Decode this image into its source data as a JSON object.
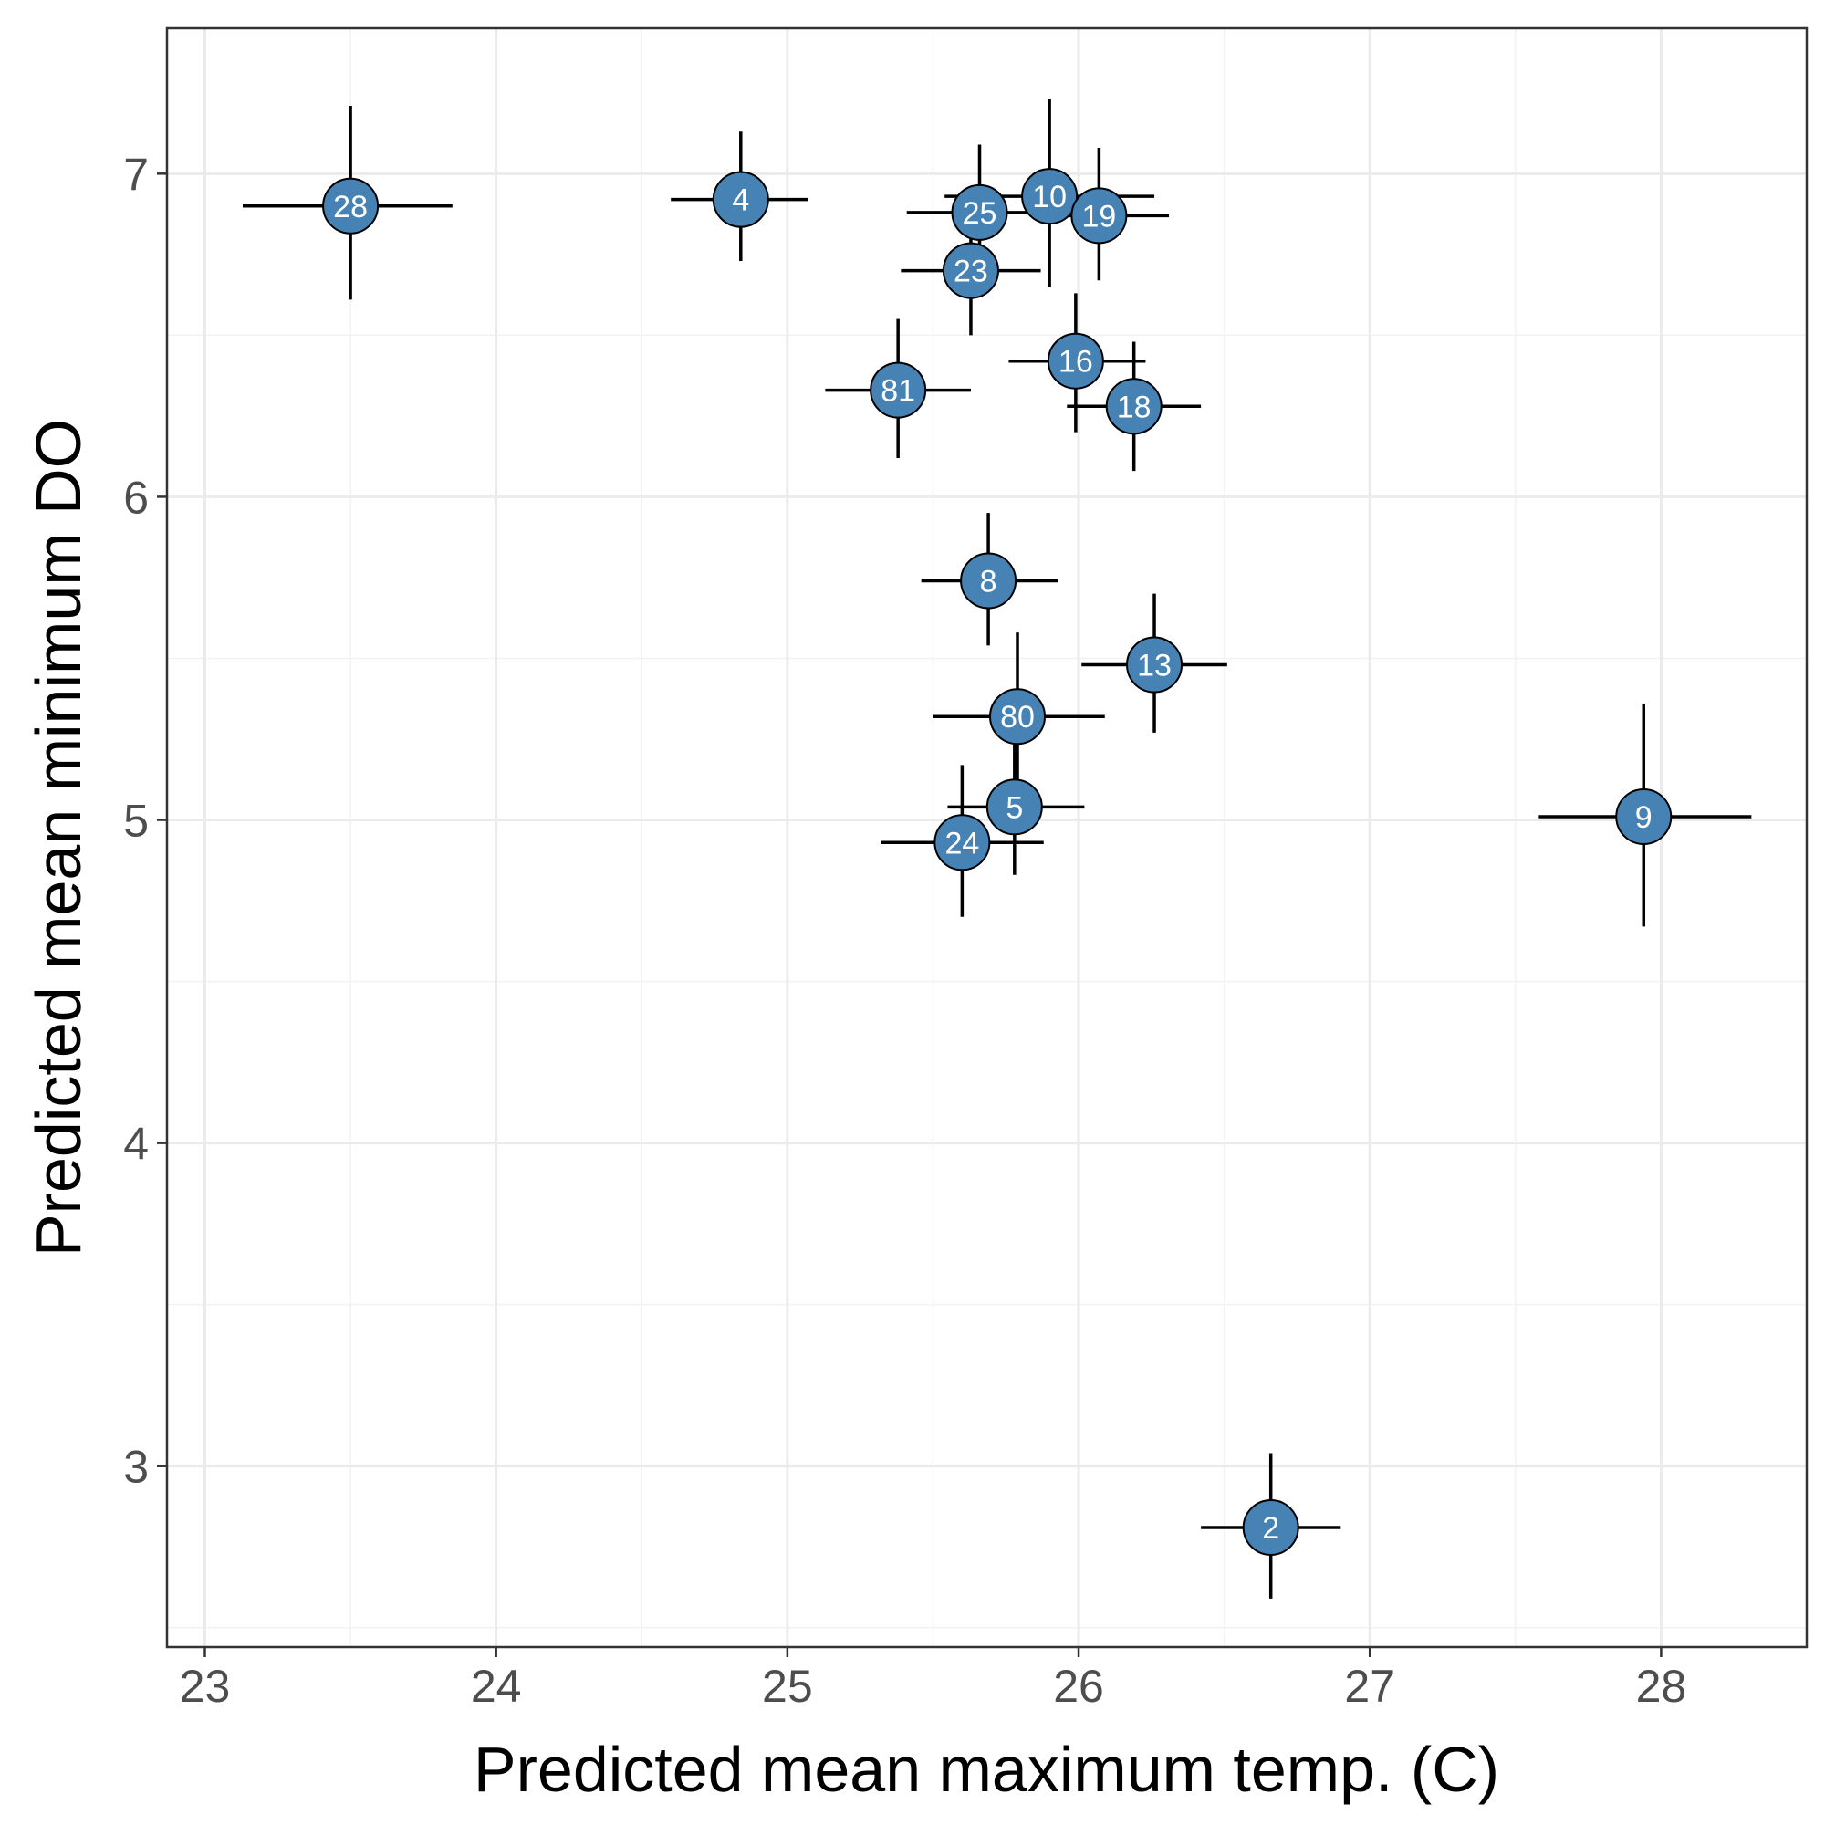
{
  "chart_data": {
    "type": "scatter",
    "xlabel": "Predicted mean maximum temp. (C)",
    "ylabel": "Predicted mean minimum DO",
    "xlim": [
      22.87,
      28.5
    ],
    "ylim": [
      2.44,
      7.45
    ],
    "x_ticks": [
      23,
      24,
      25,
      26,
      27,
      28
    ],
    "y_ticks": [
      3,
      4,
      5,
      6,
      7
    ],
    "grid": true,
    "legend": "none",
    "point_color": "#4682b4",
    "points": [
      {
        "label": "28",
        "x": 23.5,
        "y": 6.9,
        "x_err": [
          23.13,
          23.85
        ],
        "y_err": [
          6.61,
          7.21
        ]
      },
      {
        "label": "4",
        "x": 24.84,
        "y": 6.92,
        "x_err": [
          24.6,
          25.07
        ],
        "y_err": [
          6.73,
          7.13
        ]
      },
      {
        "label": "25",
        "x": 25.66,
        "y": 6.88,
        "x_err": [
          25.41,
          25.9
        ],
        "y_err": [
          6.7,
          7.09
        ]
      },
      {
        "label": "10",
        "x": 25.9,
        "y": 6.93,
        "x_err": [
          25.54,
          26.26
        ],
        "y_err": [
          6.65,
          7.23
        ]
      },
      {
        "label": "19",
        "x": 26.07,
        "y": 6.87,
        "x_err": [
          25.84,
          26.31
        ],
        "y_err": [
          6.67,
          7.08
        ]
      },
      {
        "label": "23",
        "x": 25.63,
        "y": 6.7,
        "x_err": [
          25.39,
          25.87
        ],
        "y_err": [
          6.5,
          6.9
        ]
      },
      {
        "label": "16",
        "x": 25.99,
        "y": 6.42,
        "x_err": [
          25.76,
          26.23
        ],
        "y_err": [
          6.2,
          6.63
        ]
      },
      {
        "label": "18",
        "x": 26.19,
        "y": 6.28,
        "x_err": [
          25.96,
          26.42
        ],
        "y_err": [
          6.08,
          6.48
        ]
      },
      {
        "label": "81",
        "x": 25.38,
        "y": 6.33,
        "x_err": [
          25.13,
          25.63
        ],
        "y_err": [
          6.12,
          6.55
        ]
      },
      {
        "label": "8",
        "x": 25.69,
        "y": 5.74,
        "x_err": [
          25.46,
          25.93
        ],
        "y_err": [
          5.54,
          5.95
        ]
      },
      {
        "label": "13",
        "x": 26.26,
        "y": 5.48,
        "x_err": [
          26.01,
          26.51
        ],
        "y_err": [
          5.27,
          5.7
        ]
      },
      {
        "label": "80",
        "x": 25.79,
        "y": 5.32,
        "x_err": [
          25.5,
          26.09
        ],
        "y_err": [
          5.06,
          5.58
        ]
      },
      {
        "label": "5",
        "x": 25.78,
        "y": 5.04,
        "x_err": [
          25.55,
          26.02
        ],
        "y_err": [
          4.83,
          5.25
        ]
      },
      {
        "label": "24",
        "x": 25.6,
        "y": 4.93,
        "x_err": [
          25.32,
          25.88
        ],
        "y_err": [
          4.7,
          5.17
        ]
      },
      {
        "label": "9",
        "x": 27.94,
        "y": 5.01,
        "x_err": [
          27.58,
          28.31
        ],
        "y_err": [
          4.67,
          5.36
        ]
      },
      {
        "label": "2",
        "x": 26.66,
        "y": 2.81,
        "x_err": [
          26.42,
          26.9
        ],
        "y_err": [
          2.59,
          3.04
        ]
      }
    ]
  }
}
